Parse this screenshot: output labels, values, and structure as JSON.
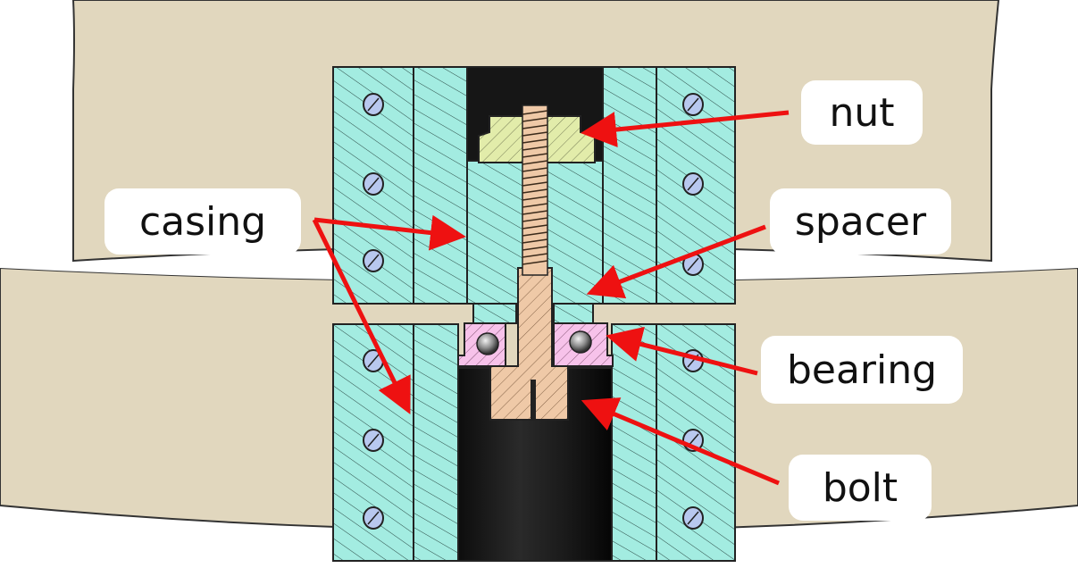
{
  "labels": {
    "nut": "nut",
    "casing": "casing",
    "spacer": "spacer",
    "bearing": "bearing",
    "bolt": "bolt"
  },
  "colors": {
    "background_part": "#e1d7be",
    "casing": "#a3ece1",
    "nut": "#e2ecaa",
    "bolt": "#efc9a7",
    "bearing": "#f7c2ea",
    "shaft_bore": "#151515",
    "arrow": "#ee1111"
  }
}
